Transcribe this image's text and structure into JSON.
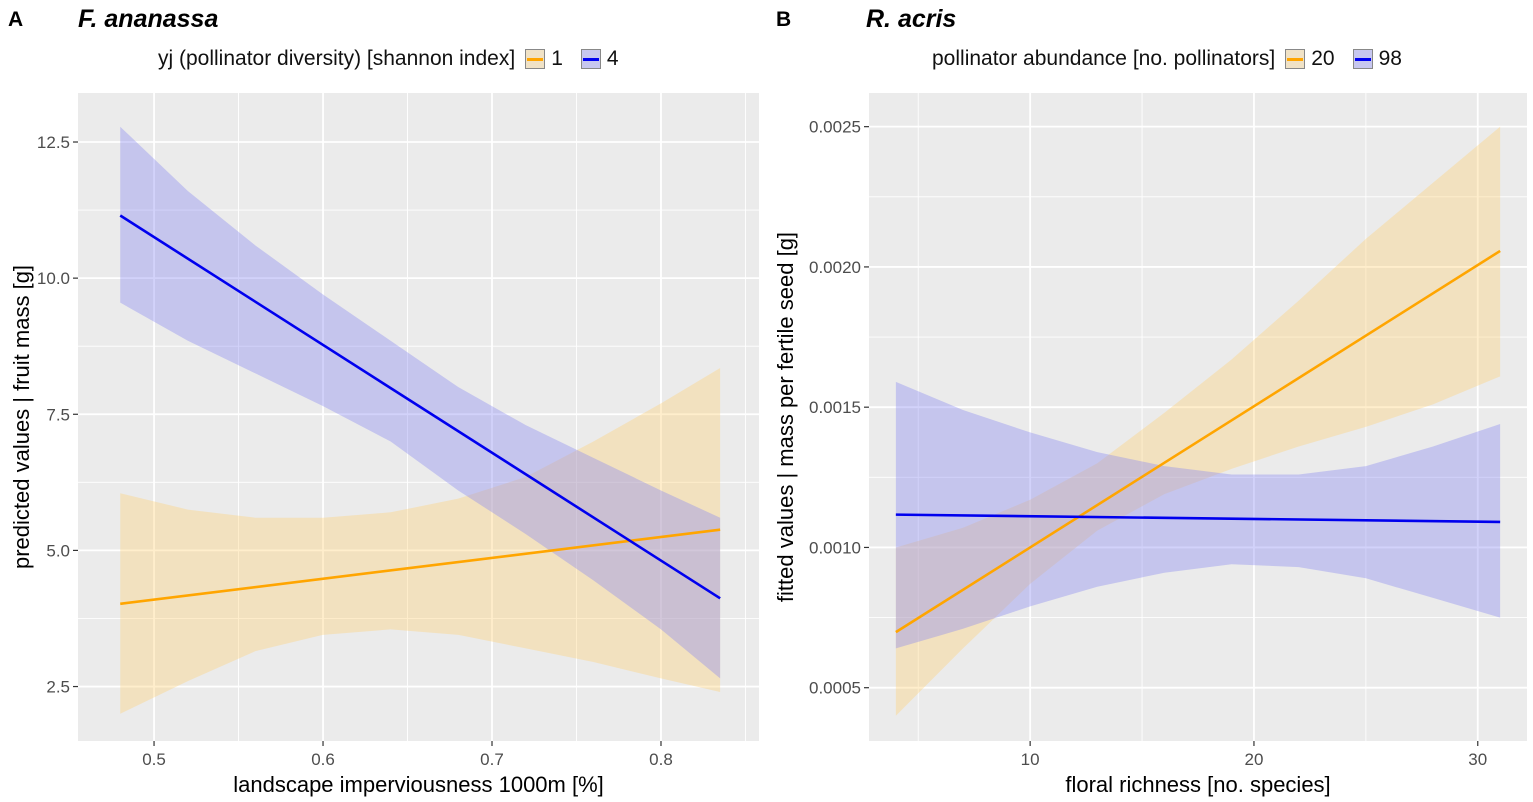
{
  "chart_data": [
    {
      "type": "line",
      "panel_label": "A",
      "title": "F. ananassa",
      "legend_title": "yj (pollinator diversity) [shannon index]",
      "xlabel": "landscape imperviousness 1000m [%]",
      "ylabel": "predicted values | fruit mass [g]",
      "xlim": [
        0.455,
        0.858
      ],
      "ylim": [
        1.5,
        13.4
      ],
      "xticks": [
        0.5,
        0.6,
        0.7,
        0.8
      ],
      "xtick_labels": [
        "0.5",
        "0.6",
        "0.7",
        "0.8"
      ],
      "yticks": [
        2.5,
        5.0,
        7.5,
        10.0,
        12.5
      ],
      "ytick_labels": [
        "2.5",
        "5.0",
        "7.5",
        "10.0",
        "12.5"
      ],
      "grid": true,
      "legend_position": "top",
      "series": [
        {
          "name": "1",
          "color": "#ffa500",
          "x": [
            0.48,
            0.835
          ],
          "y": [
            4.02,
            5.38
          ],
          "band_x": [
            0.48,
            0.52,
            0.56,
            0.6,
            0.64,
            0.68,
            0.72,
            0.76,
            0.8,
            0.835
          ],
          "band_lower": [
            2.0,
            2.6,
            3.15,
            3.45,
            3.55,
            3.45,
            3.2,
            2.95,
            2.65,
            2.4
          ],
          "band_upper": [
            6.05,
            5.75,
            5.6,
            5.6,
            5.7,
            5.95,
            6.35,
            7.0,
            7.7,
            8.35
          ]
        },
        {
          "name": "4",
          "color": "#0000ee",
          "x": [
            0.48,
            0.835
          ],
          "y": [
            11.15,
            4.12
          ],
          "band_x": [
            0.48,
            0.52,
            0.56,
            0.6,
            0.64,
            0.68,
            0.72,
            0.76,
            0.8,
            0.835
          ],
          "band_lower": [
            9.55,
            8.85,
            8.25,
            7.65,
            7.0,
            6.1,
            5.3,
            4.45,
            3.55,
            2.65
          ],
          "band_upper": [
            12.78,
            11.6,
            10.6,
            9.7,
            8.85,
            8.0,
            7.3,
            6.7,
            6.1,
            5.6
          ]
        }
      ]
    },
    {
      "type": "line",
      "panel_label": "B",
      "title": "R. acris",
      "legend_title": "pollinator abundance [no. pollinators]",
      "xlabel": "floral richness [no. species]",
      "ylabel": "fitted values | mass per fertile seed [g]",
      "xlim": [
        2.8,
        32.2
      ],
      "ylim": [
        0.00031,
        0.00262
      ],
      "xticks": [
        10,
        20,
        30
      ],
      "xtick_labels": [
        "10",
        "20",
        "30"
      ],
      "yticks": [
        0.0005,
        0.001,
        0.0015,
        0.002,
        0.0025
      ],
      "ytick_labels": [
        "0.0005",
        "0.0010",
        "0.0015",
        "0.0020",
        "0.0025"
      ],
      "grid": true,
      "legend_position": "top",
      "series": [
        {
          "name": "20",
          "color": "#ffa500",
          "x": [
            4,
            31
          ],
          "y": [
            0.000698,
            0.002057
          ],
          "band_x": [
            4,
            7,
            10,
            13,
            16,
            19,
            22,
            25,
            28,
            31
          ],
          "band_lower": [
            0.0004,
            0.00064,
            0.00087,
            0.00106,
            0.00119,
            0.00128,
            0.00136,
            0.00143,
            0.00151,
            0.00161
          ],
          "band_upper": [
            0.001,
            0.00107,
            0.00117,
            0.0013,
            0.00148,
            0.00167,
            0.00188,
            0.0021,
            0.0023,
            0.0025
          ]
        },
        {
          "name": "98",
          "color": "#0000ee",
          "x": [
            4,
            31
          ],
          "y": [
            0.001117,
            0.001091
          ],
          "band_x": [
            4,
            7,
            10,
            13,
            16,
            19,
            22,
            25,
            28,
            31
          ],
          "band_lower": [
            0.00064,
            0.00071,
            0.00079,
            0.00086,
            0.00091,
            0.00094,
            0.00093,
            0.00089,
            0.00082,
            0.00075
          ],
          "band_upper": [
            0.00159,
            0.00149,
            0.00141,
            0.00134,
            0.00129,
            0.00126,
            0.00126,
            0.00129,
            0.00136,
            0.00144
          ]
        }
      ]
    }
  ]
}
